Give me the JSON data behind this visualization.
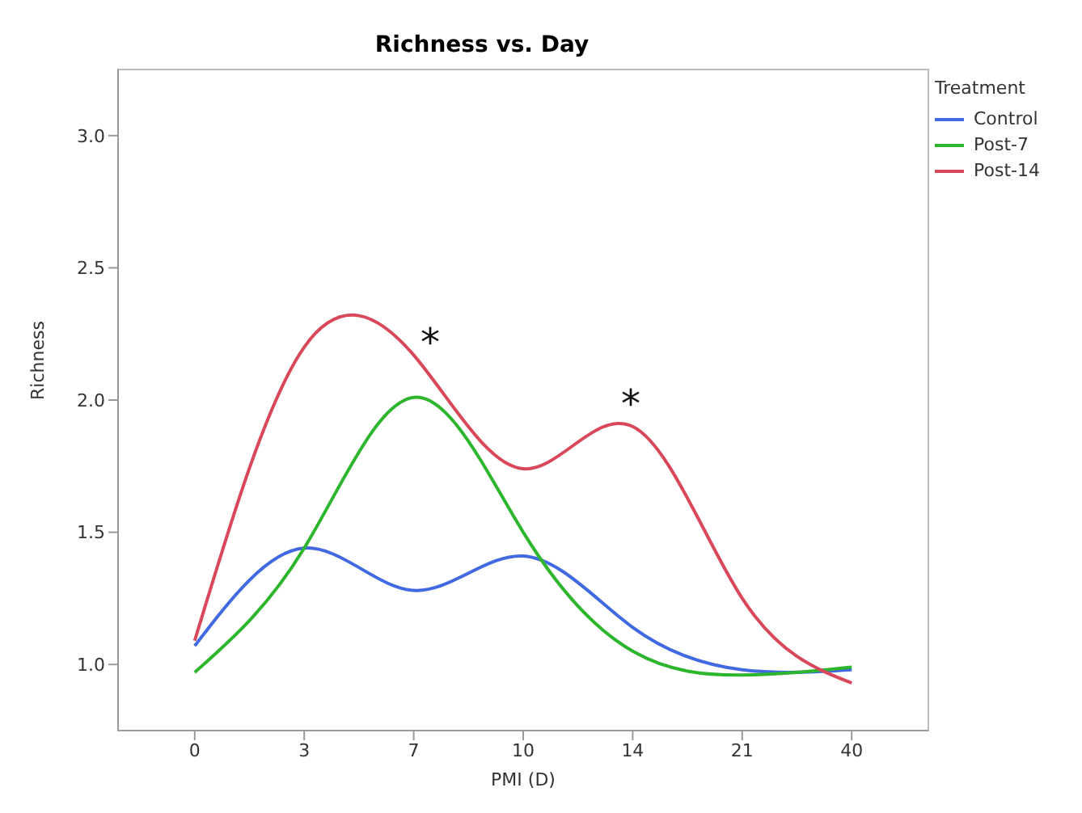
{
  "chart_data": {
    "type": "line",
    "title": "Richness vs. Day",
    "xlabel": "PMI (D)",
    "ylabel": "Richness",
    "legend_title": "Treatment",
    "categories": [
      "0",
      "3",
      "7",
      "10",
      "14",
      "21",
      "40"
    ],
    "series": [
      {
        "name": "Control",
        "color": "#4169e1",
        "values": [
          1.07,
          1.44,
          1.28,
          1.41,
          1.14,
          0.98,
          0.98
        ]
      },
      {
        "name": "Post-7",
        "color": "#2db52d",
        "values": [
          0.97,
          1.44,
          2.01,
          1.5,
          1.05,
          0.96,
          0.99
        ]
      },
      {
        "name": "Post-14",
        "color": "#d9475a",
        "values": [
          1.09,
          2.2,
          2.17,
          1.74,
          1.9,
          1.25,
          0.93
        ]
      }
    ],
    "ylim": [
      0.75,
      3.25
    ],
    "yticks": [
      {
        "value": 1,
        "label": "1.0"
      },
      {
        "value": 1.5,
        "label": "1.5"
      },
      {
        "value": 2,
        "label": "2.0"
      },
      {
        "value": 2.5,
        "label": "2.5"
      },
      {
        "value": 3,
        "label": "3.0"
      }
    ],
    "annotations": [
      "*",
      "*"
    ],
    "grid": false,
    "legend": "top right",
    "marker": "none",
    "line_style": "solid"
  }
}
